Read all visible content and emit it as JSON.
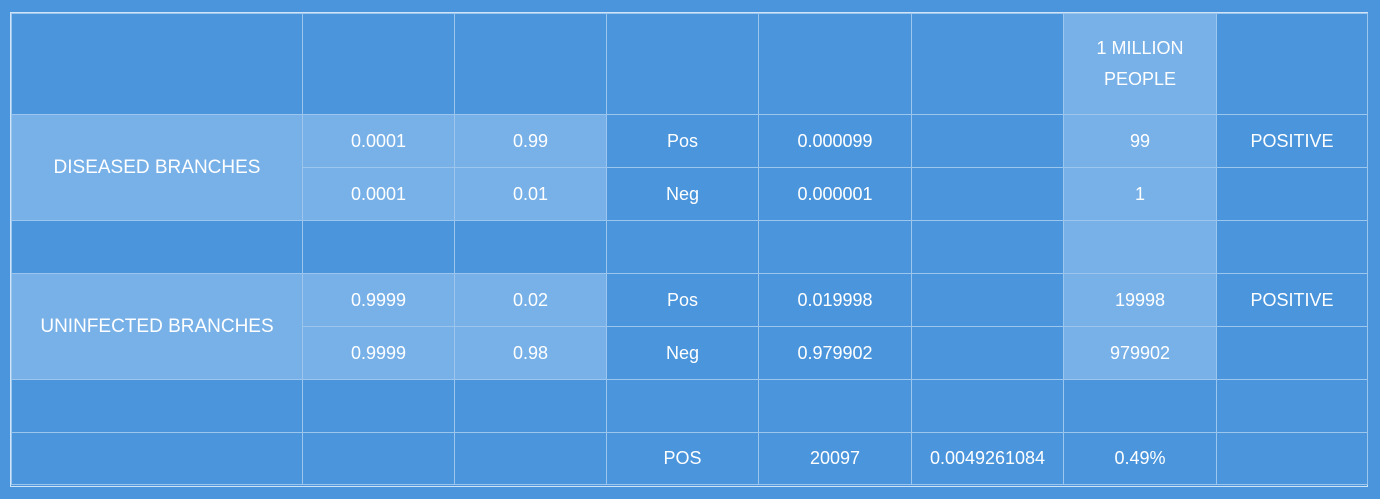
{
  "header": {
    "population_label": "1 MILLION PEOPLE"
  },
  "diseased": {
    "label": "DISEASED BRANCHES",
    "rows": [
      {
        "prior": "0.0001",
        "rate": "0.99",
        "result": "Pos",
        "joint": "0.000099",
        "count": "99",
        "flag": "POSITIVE"
      },
      {
        "prior": "0.0001",
        "rate": "0.01",
        "result": "Neg",
        "joint": "0.000001",
        "count": "1",
        "flag": ""
      }
    ]
  },
  "uninfected": {
    "label": "UNINFECTED BRANCHES",
    "rows": [
      {
        "prior": "0.9999",
        "rate": "0.02",
        "result": "Pos",
        "joint": "0.019998",
        "count": "19998",
        "flag": "POSITIVE"
      },
      {
        "prior": "0.9999",
        "rate": "0.98",
        "result": "Neg",
        "joint": "0.979902",
        "count": "979902",
        "flag": ""
      }
    ]
  },
  "summary": {
    "label": "POS",
    "total": "20097",
    "ratio": "0.0049261084",
    "percent": "0.49%"
  },
  "colors": {
    "background": "#4a95dc",
    "light_cell": "#78b1e8",
    "grid_line": "#9cc6ee",
    "text": "#ffffff"
  }
}
